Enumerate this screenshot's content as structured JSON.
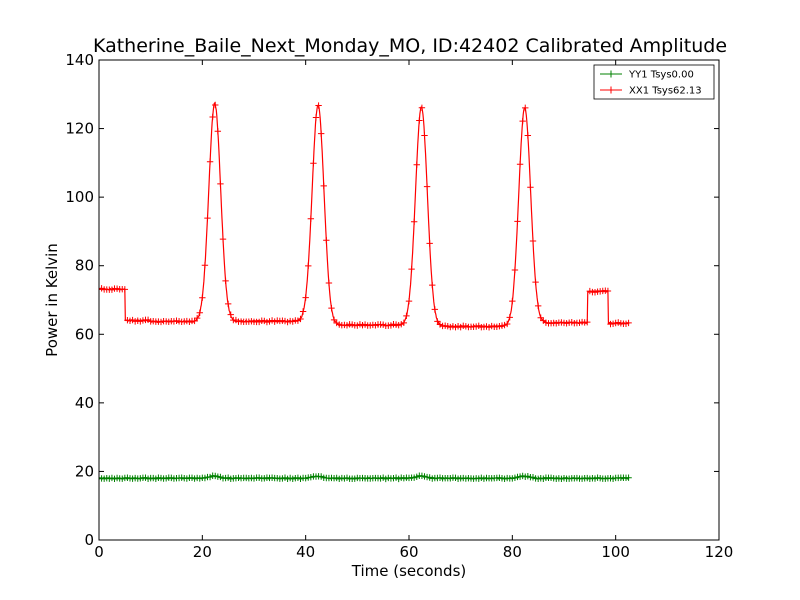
{
  "chart_data": {
    "type": "line",
    "title": "Katherine_Baile_Next_Monday_MO, ID:42402 Calibrated Amplitude",
    "xlabel": "Time (seconds)",
    "ylabel": "Power in Kelvin",
    "xlim": [
      0,
      120
    ],
    "ylim": [
      0,
      140
    ],
    "xticks": [
      "0",
      "20",
      "40",
      "60",
      "80",
      "100",
      "120"
    ],
    "yticks": [
      "0",
      "20",
      "40",
      "60",
      "80",
      "100",
      "120",
      "140"
    ],
    "grid": false,
    "legend_position": "top-right",
    "series": [
      {
        "name": "YY1 Tsys0.00",
        "color": "#008000",
        "marker": "plus",
        "segments": [
          {
            "x_start": 0,
            "x_end": 102.5,
            "y": 18.0
          }
        ],
        "bumps": [
          22.3,
          42.3,
          62.3,
          82.3
        ],
        "bump_height": 0.6
      },
      {
        "name": "XX1 Tsys62.13",
        "color": "#ff0000",
        "marker": "plus",
        "baseline_segments": [
          {
            "x_start": 0,
            "x_end": 5,
            "y": 73.2
          },
          {
            "x_start": 5,
            "x_end": 10,
            "y": 64.0
          },
          {
            "x_start": 10,
            "x_end": 20,
            "y": 63.7
          },
          {
            "x_start": 25,
            "x_end": 40,
            "y": 63.8
          },
          {
            "x_start": 45,
            "x_end": 60,
            "y": 62.7
          },
          {
            "x_start": 65,
            "x_end": 80,
            "y": 62.3
          },
          {
            "x_start": 85,
            "x_end": 94.5,
            "y": 63.4
          },
          {
            "x_start": 94.5,
            "x_end": 98.5,
            "y": 72.5
          },
          {
            "x_start": 98.5,
            "x_end": 102.5,
            "y": 63.2
          }
        ],
        "peaks": [
          {
            "x": 22.4,
            "y": 127.3
          },
          {
            "x": 42.4,
            "y": 126.8
          },
          {
            "x": 62.4,
            "y": 126.3
          },
          {
            "x": 82.4,
            "y": 126.1
          }
        ],
        "peak_width": 1.15
      }
    ]
  }
}
